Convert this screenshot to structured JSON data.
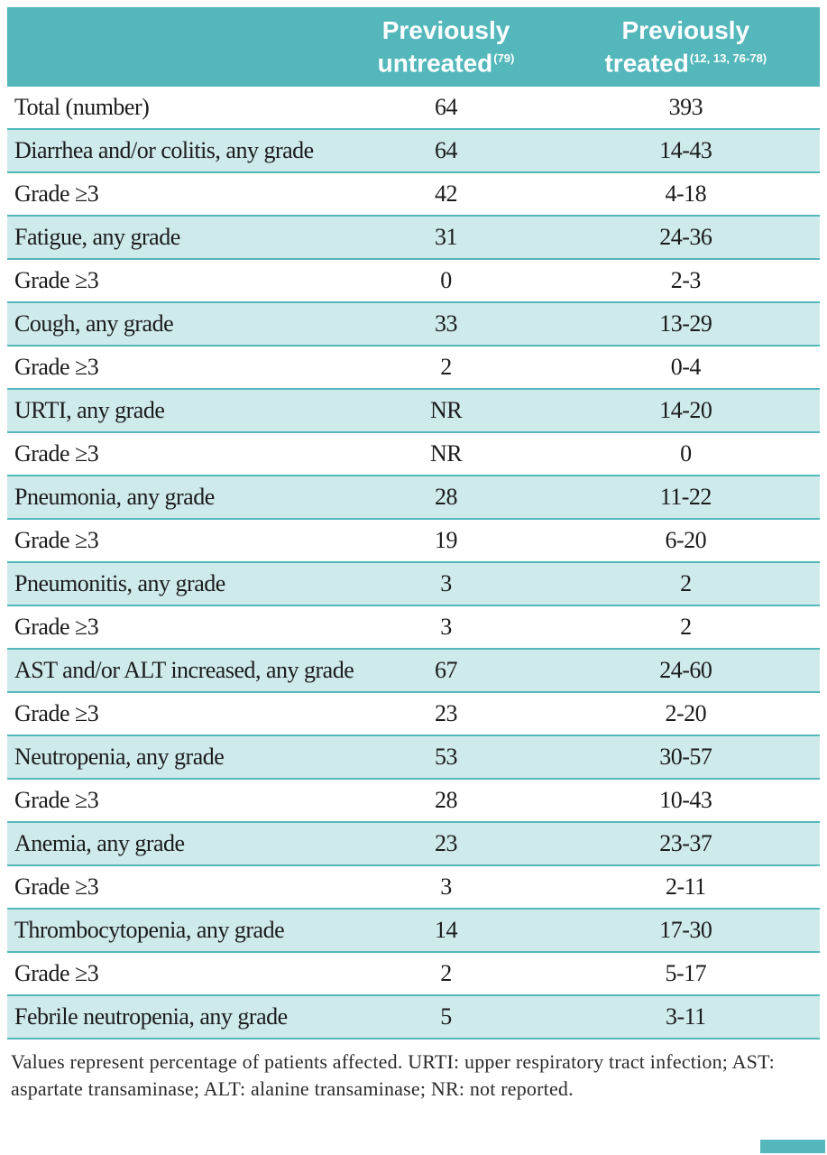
{
  "colors": {
    "header_teal": "#53b7bb",
    "row_teal": "#cfeaeb",
    "row_white": "#ffffff",
    "divider_teal": "#53b7bb",
    "header_text": "#ffffff",
    "body_text": "#1b1b1b",
    "footnote_text": "#2b2b2b"
  },
  "table": {
    "columns": [
      {
        "label": ""
      },
      {
        "line1": "Previously",
        "line2": "untreated",
        "ref": "(79)"
      },
      {
        "line1": "Previously",
        "line2": "treated",
        "ref": "(12, 13, 76-78)"
      }
    ],
    "rows": [
      {
        "label": "Total (number)",
        "untreated": "64",
        "treated": "393"
      },
      {
        "label": "Diarrhea and/or colitis, any grade",
        "untreated": "64",
        "treated": "14-43"
      },
      {
        "label": "Grade ≥3",
        "untreated": "42",
        "treated": "4-18"
      },
      {
        "label": "Fatigue, any grade",
        "untreated": "31",
        "treated": "24-36"
      },
      {
        "label": "Grade ≥3",
        "untreated": "0",
        "treated": "2-3"
      },
      {
        "label": "Cough, any grade",
        "untreated": "33",
        "treated": "13-29"
      },
      {
        "label": "Grade ≥3",
        "untreated": "2",
        "treated": "0-4"
      },
      {
        "label": "URTI, any grade",
        "untreated": "NR",
        "treated": "14-20"
      },
      {
        "label": "Grade ≥3",
        "untreated": "NR",
        "treated": "0"
      },
      {
        "label": "Pneumonia, any grade",
        "untreated": "28",
        "treated": "11-22"
      },
      {
        "label": "Grade ≥3",
        "untreated": "19",
        "treated": "6-20"
      },
      {
        "label": "Pneumonitis, any grade",
        "untreated": "3",
        "treated": "2"
      },
      {
        "label": "Grade ≥3",
        "untreated": "3",
        "treated": "2"
      },
      {
        "label": "AST and/or ALT increased, any grade",
        "untreated": "67",
        "treated": "24-60"
      },
      {
        "label": "Grade ≥3",
        "untreated": "23",
        "treated": "2-20"
      },
      {
        "label": "Neutropenia, any grade",
        "untreated": "53",
        "treated": "30-57"
      },
      {
        "label": "Grade ≥3",
        "untreated": "28",
        "treated": "10-43"
      },
      {
        "label": "Anemia, any grade",
        "untreated": "23",
        "treated": "23-37"
      },
      {
        "label": "Grade ≥3",
        "untreated": "3",
        "treated": "2-11"
      },
      {
        "label": "Thrombocytopenia, any grade",
        "untreated": "14",
        "treated": "17-30"
      },
      {
        "label": "Grade ≥3",
        "untreated": "2",
        "treated": "5-17"
      },
      {
        "label": "Febrile neutropenia, any grade",
        "untreated": "5",
        "treated": "3-11"
      }
    ]
  },
  "footnote": "Values represent percentage of patients affected. URTI: upper respiratory tract infection; AST: aspartate transaminase; ALT: alanine transaminase; NR: not reported."
}
